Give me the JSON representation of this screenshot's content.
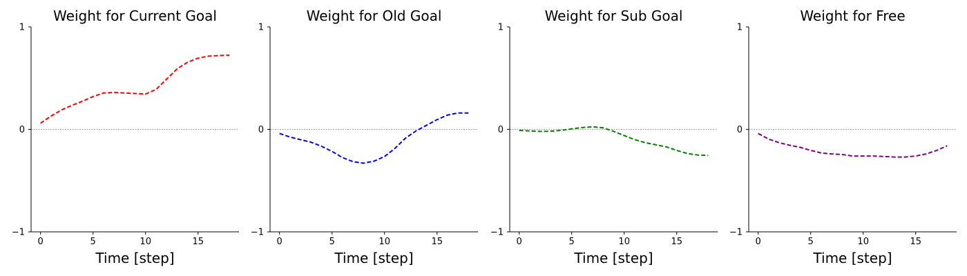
{
  "chart_data": [
    {
      "type": "line",
      "title": "Weight for Current Goal",
      "xlabel": "Time [step]",
      "ylabel": "",
      "xlim": [
        -0.9,
        18.9
      ],
      "ylim": [
        -1,
        1
      ],
      "xticks": [
        0,
        5,
        10,
        15
      ],
      "yticks": [
        -1,
        0,
        1
      ],
      "zero_line": true,
      "grid": false,
      "series": [
        {
          "color": "#ff0000",
          "linestyle": "dashed",
          "x": [
            0,
            1,
            2,
            3,
            4,
            5,
            6,
            7,
            8,
            9,
            10,
            11,
            12,
            13,
            14,
            15,
            16,
            17,
            18
          ],
          "y": [
            0.06,
            0.13,
            0.19,
            0.235,
            0.275,
            0.32,
            0.355,
            0.36,
            0.355,
            0.35,
            0.345,
            0.39,
            0.49,
            0.59,
            0.655,
            0.695,
            0.715,
            0.72,
            0.725
          ]
        }
      ]
    },
    {
      "type": "line",
      "title": "Weight for Old Goal",
      "xlabel": "Time [step]",
      "ylabel": "",
      "xlim": [
        -0.9,
        18.9
      ],
      "ylim": [
        -1,
        1
      ],
      "xticks": [
        0,
        5,
        10,
        15
      ],
      "yticks": [
        -1,
        0,
        1
      ],
      "zero_line": true,
      "grid": false,
      "series": [
        {
          "color": "#0000ff",
          "linestyle": "dashed",
          "x": [
            0,
            1,
            2,
            3,
            4,
            5,
            6,
            7,
            8,
            9,
            10,
            11,
            12,
            13,
            14,
            15,
            16,
            17,
            18
          ],
          "y": [
            -0.04,
            -0.075,
            -0.1,
            -0.125,
            -0.165,
            -0.215,
            -0.275,
            -0.315,
            -0.33,
            -0.31,
            -0.265,
            -0.185,
            -0.085,
            -0.015,
            0.04,
            0.095,
            0.14,
            0.16,
            0.16
          ]
        }
      ]
    },
    {
      "type": "line",
      "title": "Weight for Sub Goal",
      "xlabel": "Time [step]",
      "ylabel": "",
      "xlim": [
        -0.9,
        18.9
      ],
      "ylim": [
        -1,
        1
      ],
      "xticks": [
        0,
        5,
        10,
        15
      ],
      "yticks": [
        -1,
        0,
        1
      ],
      "zero_line": true,
      "grid": false,
      "series": [
        {
          "color": "#008000",
          "linestyle": "dashed",
          "x": [
            0,
            1,
            2,
            3,
            4,
            5,
            6,
            7,
            8,
            9,
            10,
            11,
            12,
            13,
            14,
            15,
            16,
            17,
            18
          ],
          "y": [
            -0.01,
            -0.015,
            -0.02,
            -0.018,
            -0.01,
            0.005,
            0.018,
            0.025,
            0.015,
            -0.02,
            -0.06,
            -0.1,
            -0.13,
            -0.15,
            -0.17,
            -0.205,
            -0.235,
            -0.25,
            -0.255
          ]
        }
      ]
    },
    {
      "type": "line",
      "title": "Weight for Free",
      "xlabel": "Time [step]",
      "ylabel": "",
      "xlim": [
        -0.9,
        18.9
      ],
      "ylim": [
        -1,
        1
      ],
      "xticks": [
        0,
        5,
        10,
        15
      ],
      "yticks": [
        -1,
        0,
        1
      ],
      "zero_line": true,
      "grid": false,
      "series": [
        {
          "color": "#800080",
          "linestyle": "dashed",
          "x": [
            0,
            1,
            2,
            3,
            4,
            5,
            6,
            7,
            8,
            9,
            10,
            11,
            12,
            13,
            14,
            15,
            16,
            17,
            18
          ],
          "y": [
            -0.04,
            -0.095,
            -0.13,
            -0.155,
            -0.175,
            -0.205,
            -0.23,
            -0.24,
            -0.245,
            -0.26,
            -0.26,
            -0.26,
            -0.265,
            -0.27,
            -0.27,
            -0.26,
            -0.24,
            -0.205,
            -0.16
          ]
        }
      ]
    }
  ]
}
